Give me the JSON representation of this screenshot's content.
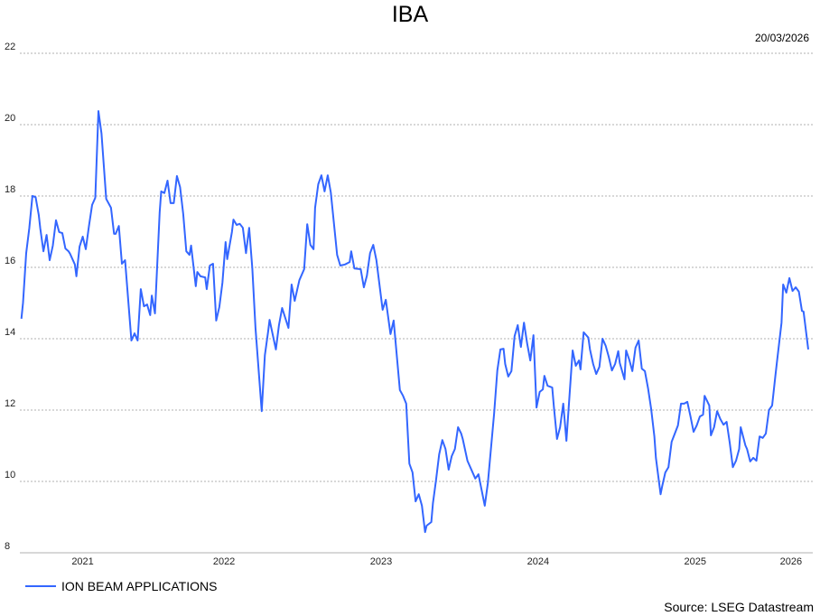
{
  "chart_data": {
    "type": "line",
    "title": "IBA",
    "date_label": "20/03/2026",
    "source": "Source: LSEG Datastream",
    "xlabel": "",
    "ylabel": "",
    "ylim": [
      8,
      22
    ],
    "yticks": [
      8,
      10,
      12,
      14,
      16,
      18,
      20,
      22
    ],
    "xlim": [
      2021.2,
      2026.22
    ],
    "xtick_labels": [
      "2021",
      "2022",
      "2023",
      "2024",
      "2025",
      "2026"
    ],
    "grid": true,
    "legend_position": "bottom-left",
    "series": [
      {
        "name": "ION BEAM APPLICATIONS",
        "color": "#3366ff",
        "x": [
          2021.21,
          2021.22,
          2021.24,
          2021.26,
          2021.28,
          2021.3,
          2021.32,
          2021.33,
          2021.35,
          2021.37,
          2021.39,
          2021.41,
          2021.43,
          2021.45,
          2021.47,
          2021.49,
          2021.51,
          2021.52,
          2021.55,
          2021.56,
          2021.58,
          2021.6,
          2021.62,
          2021.64,
          2021.66,
          2021.68,
          2021.7,
          2021.72,
          2021.75,
          2021.78,
          2021.8,
          2021.81,
          2021.83,
          2021.85,
          2021.87,
          2021.91,
          2021.93,
          2021.95,
          2021.97,
          2021.99,
          2022.01,
          2022.03,
          2022.04,
          2022.06,
          2022.09,
          2022.1,
          2022.12,
          2022.14,
          2022.16,
          2022.18,
          2022.2,
          2022.22,
          2022.24,
          2022.26,
          2022.28,
          2022.29,
          2022.32,
          2022.33,
          2022.35,
          2022.38,
          2022.39,
          2022.41,
          2022.43,
          2022.45,
          2022.47,
          2022.49,
          2022.51,
          2022.52,
          2022.55,
          2022.56,
          2022.58,
          2022.6,
          2022.62,
          2022.64,
          2022.66,
          2022.68,
          2022.7,
          2022.74,
          2022.76,
          2022.78,
          2022.79,
          2022.83,
          2022.85,
          2022.87,
          2022.91,
          2022.93,
          2022.95,
          2022.98,
          2023.01,
          2023.03,
          2023.05,
          2023.07,
          2023.08,
          2023.1,
          2023.12,
          2023.14,
          2023.16,
          2023.18,
          2023.22,
          2023.24,
          2023.27,
          2023.3,
          2023.31,
          2023.33,
          2023.37,
          2023.39,
          2023.41,
          2023.43,
          2023.45,
          2023.47,
          2023.51,
          2023.53,
          2023.56,
          2023.58,
          2023.62,
          2023.64,
          2023.66,
          2023.68,
          2023.7,
          2023.72,
          2023.74,
          2023.76,
          2023.78,
          2023.79,
          2023.82,
          2023.83,
          2023.85,
          2023.87,
          2023.89,
          2023.91,
          2023.93,
          2023.95,
          2023.97,
          2023.99,
          2024.01,
          2024.02,
          2024.05,
          2024.1,
          2024.12,
          2024.16,
          2024.18,
          2024.22,
          2024.24,
          2024.26,
          2024.28,
          2024.29,
          2024.31,
          2024.33,
          2024.35,
          2024.37,
          2024.39,
          2024.41,
          2024.43,
          2024.45,
          2024.47,
          2024.49,
          2024.51,
          2024.53,
          2024.54,
          2024.56,
          2024.59,
          2024.6,
          2024.62,
          2024.64,
          2024.66,
          2024.68,
          2024.7,
          2024.72,
          2024.74,
          2024.76,
          2024.77,
          2024.79,
          2024.82,
          2024.83,
          2024.85,
          2024.87,
          2024.89,
          2024.91,
          2024.93,
          2024.95,
          2024.97,
          2024.99,
          2025.01,
          2025.02,
          2025.05,
          2025.06,
          2025.08,
          2025.1,
          2025.12,
          2025.14,
          2025.16,
          2025.18,
          2025.2,
          2025.22,
          2025.24,
          2025.25,
          2025.28,
          2025.29,
          2025.31,
          2025.33,
          2025.35,
          2025.37,
          2025.39,
          2025.41,
          2025.43,
          2025.45,
          2025.47,
          2025.49,
          2025.51,
          2025.53,
          2025.55,
          2025.56,
          2025.59,
          2025.6,
          2025.62,
          2025.64,
          2025.66,
          2025.68,
          2025.7,
          2025.72,
          2025.74,
          2025.76,
          2025.78,
          2025.79,
          2025.82,
          2025.83,
          2025.85,
          2025.87,
          2025.89,
          2025.91,
          2025.93,
          2025.95,
          2025.97,
          2025.99,
          2026.01,
          2026.02,
          2026.05,
          2026.06,
          2026.08,
          2026.1,
          2026.12,
          2026.14,
          2026.16,
          2026.18,
          2026.19,
          2026.22
        ],
        "values": [
          14.56,
          15.01,
          16.4,
          17.09,
          18.0,
          17.97,
          17.47,
          17.09,
          16.45,
          16.91,
          16.2,
          16.61,
          17.32,
          16.99,
          16.96,
          16.53,
          16.45,
          16.38,
          16.08,
          15.75,
          16.58,
          16.86,
          16.51,
          17.16,
          17.75,
          17.95,
          20.38,
          19.75,
          17.92,
          17.67,
          16.94,
          16.94,
          17.16,
          16.1,
          16.2,
          13.95,
          14.15,
          13.95,
          15.39,
          14.91,
          14.96,
          14.66,
          15.21,
          14.71,
          17.54,
          18.13,
          18.08,
          18.43,
          17.8,
          17.8,
          18.56,
          18.25,
          17.49,
          16.45,
          16.35,
          16.61,
          15.47,
          15.87,
          15.75,
          15.72,
          15.39,
          16.05,
          16.1,
          14.51,
          14.89,
          15.57,
          16.71,
          16.23,
          16.99,
          17.34,
          17.19,
          17.22,
          17.11,
          16.4,
          17.11,
          15.97,
          14.3,
          11.97,
          13.54,
          14.18,
          14.53,
          13.7,
          14.38,
          14.86,
          14.3,
          15.52,
          15.06,
          15.64,
          15.95,
          17.21,
          16.63,
          16.51,
          17.67,
          18.33,
          18.58,
          18.13,
          18.58,
          18.1,
          16.35,
          16.05,
          16.08,
          16.15,
          16.45,
          15.97,
          15.95,
          15.44,
          15.77,
          16.4,
          16.63,
          16.2,
          14.81,
          15.09,
          14.13,
          14.51,
          12.56,
          12.4,
          12.18,
          10.5,
          10.25,
          9.44,
          9.64,
          9.32,
          8.58,
          8.76,
          8.86,
          9.39,
          10.03,
          10.76,
          11.16,
          10.91,
          10.33,
          10.71,
          10.91,
          11.52,
          11.34,
          11.19,
          10.58,
          10.08,
          10.2,
          9.32,
          9.95,
          11.92,
          13.11,
          13.7,
          13.72,
          13.29,
          12.94,
          13.09,
          14.07,
          14.38,
          13.77,
          14.45,
          13.87,
          13.39,
          14.1,
          12.07,
          12.51,
          12.58,
          12.96,
          12.68,
          12.63,
          12.1,
          11.19,
          11.52,
          12.18,
          11.14,
          12.43,
          13.67,
          13.24,
          13.39,
          13.14,
          14.18,
          14.03,
          13.7,
          13.29,
          13.01,
          13.21,
          14.0,
          13.8,
          13.49,
          13.11,
          13.29,
          13.65,
          13.32,
          12.86,
          13.67,
          13.42,
          13.09,
          13.75,
          13.95,
          13.16,
          13.09,
          12.61,
          12.02,
          11.26,
          10.66,
          9.64,
          9.87,
          10.25,
          10.4,
          11.11,
          11.34,
          11.57,
          12.18,
          12.18,
          12.23,
          11.82,
          11.39,
          11.57,
          11.82,
          11.87,
          12.4,
          12.13,
          11.29,
          11.52,
          11.97,
          11.75,
          11.59,
          11.67,
          11.09,
          10.4,
          10.58,
          10.91,
          11.52,
          11.01,
          10.91,
          10.56,
          10.66,
          10.58,
          11.26,
          11.22,
          11.34,
          12.0,
          12.13,
          12.94,
          13.32,
          14.45,
          15.52,
          15.29,
          15.7,
          15.34,
          15.44,
          15.32,
          14.78,
          14.76,
          13.7
        ]
      }
    ]
  }
}
